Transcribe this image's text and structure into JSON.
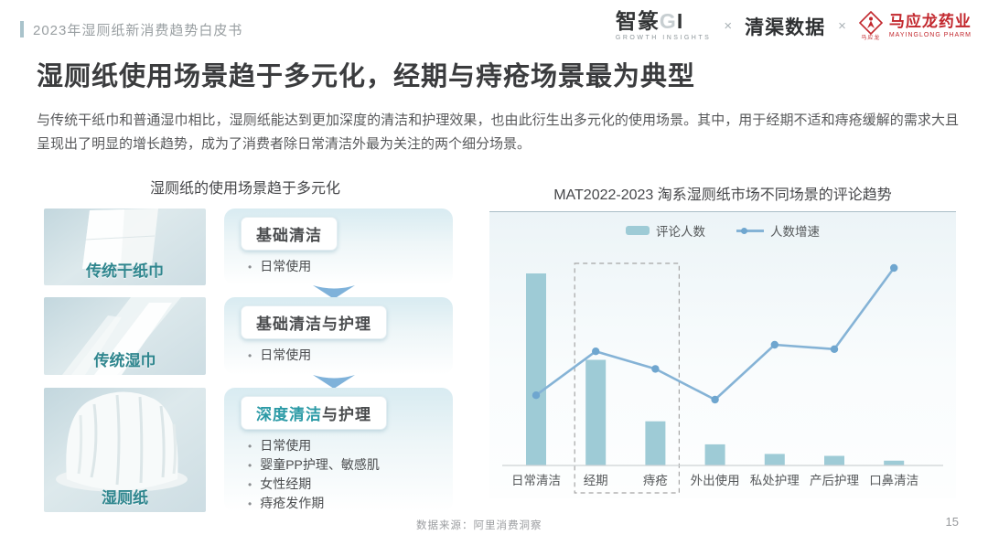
{
  "header": {
    "breadcrumb": "2023年湿厕纸新消费趋势白皮书",
    "logos": {
      "zhizhuan_name": "智篆",
      "zhizhuan_g": "G",
      "zhizhuan_i": "I",
      "zhizhuan_subtitle": "GROWTH  INSIGHTS",
      "separator": "×",
      "qingqu_name": "清渠数据",
      "mayinglong_seal": "马应龙",
      "mayinglong_name": "马应龙药业",
      "mayinglong_subtitle": "MAYINGLONG PHARM"
    }
  },
  "title": "湿厕纸使用场景趋于多元化，经期与痔疮场景最为典型",
  "body": "与传统干纸巾和普通湿巾相比，湿厕纸能达到更加深度的清洁和护理效果，也由此衍生出多元化的使用场景。其中，用于经期不适和痔疮缓解的需求大且呈现出了明显的增长趋势，成为了消费者除日常清洁外最为关注的两个细分场景。",
  "diagram": {
    "title": "湿厕纸的使用场景趋于多元化",
    "rows": [
      {
        "label": "传统干纸巾",
        "box": "基础清洁",
        "bullets": [
          "日常使用"
        ]
      },
      {
        "label": "传统湿巾",
        "box": "基础清洁与护理",
        "bullets": [
          "日常使用"
        ]
      },
      {
        "label": "湿厕纸",
        "box_highlight": "深度清洁",
        "box_rest": "与护理",
        "bullets": [
          "日常使用",
          "婴童PP护理、敏感肌",
          "女性经期",
          "痔疮发作期"
        ]
      }
    ]
  },
  "chart_data": {
    "type": "bar",
    "subtype": "bar+line combo",
    "title": "MAT2022-2023 淘系湿厕纸市场不同场景的评论趋势",
    "categories": [
      "日常清洁",
      "经期",
      "痔疮",
      "外出使用",
      "私处护理",
      "产后护理",
      "口鼻清洁"
    ],
    "series": [
      {
        "name": "评论人数",
        "type": "bar",
        "color": "#9ecbd6",
        "values": [
          100,
          55,
          23,
          11,
          6,
          5,
          2.5
        ],
        "unit": "relative index (no value axis shown; % of max bar)"
      },
      {
        "name": "人数增速",
        "type": "line",
        "color": "#85b3d6",
        "dot_color": "#6fa6cf",
        "values": [
          32,
          52,
          44,
          30,
          55,
          53,
          90
        ],
        "unit": "relative growth index (no value axis shown)"
      }
    ],
    "highlight_box_categories": [
      "经期",
      "痔疮"
    ],
    "legend_position": "top-center",
    "grid": false,
    "value_axis_labels": false,
    "xlabel": "",
    "ylabel": ""
  },
  "footer": {
    "source": "数据来源：阿里消费洞察",
    "page_number": "15"
  },
  "colors": {
    "accent_teal": "#2f868e",
    "box_highlight_teal": "#2b9aa6",
    "bar_fill": "#9ecbd6",
    "line_stroke": "#85b3d6",
    "dot_fill": "#6fa6cf",
    "dashed_box": "#a5a5a5",
    "axis_line": "#cdd3d5",
    "brand_red": "#c2272d",
    "header_gray": "#999fa2"
  }
}
